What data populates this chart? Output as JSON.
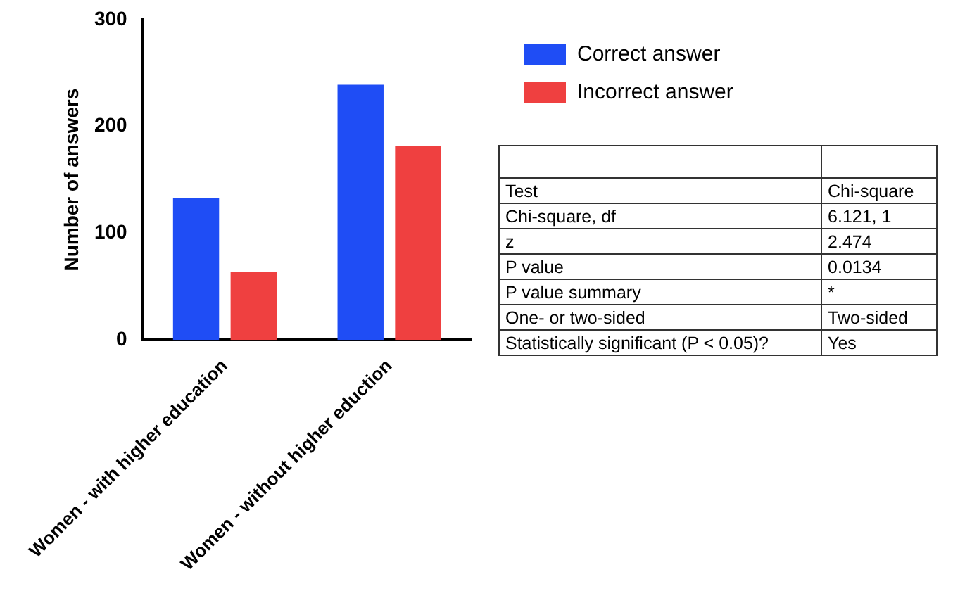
{
  "chart_data": {
    "type": "bar",
    "ylabel": "Number of answers",
    "categories": [
      "Women - with higher education",
      "Women - without higher eduction"
    ],
    "series": [
      {
        "name": "Correct answer",
        "color": "#1f4df5",
        "values": [
          133,
          239
        ]
      },
      {
        "name": "Incorrect answer",
        "color": "#ef4040",
        "values": [
          64,
          182
        ]
      }
    ],
    "ylim": [
      0,
      300
    ],
    "yticks": [
      0,
      100,
      200,
      300
    ],
    "grid": false,
    "legend": "top right",
    "annotations": [
      "Test",
      "Chi-square",
      "Chi-square, df",
      "6.121, 1",
      "z",
      "2.474",
      "P value",
      "0.0134",
      "P value summary",
      "*",
      "One- or two-sided",
      "Two-sided",
      "Statistically significant (P < 0.05)?",
      "Yes"
    ]
  }
}
